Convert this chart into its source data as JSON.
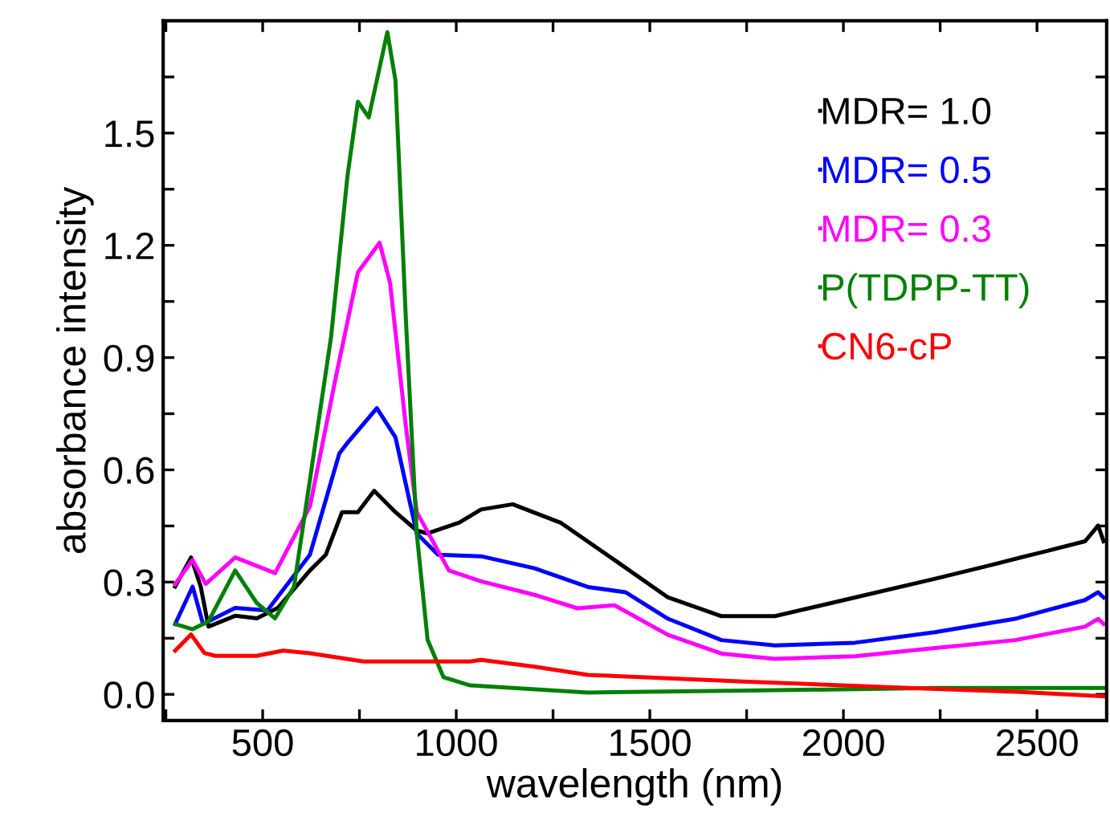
{
  "chart_data": {
    "type": "line",
    "xlabel": "wavelength (nm)",
    "ylabel": "absorbance intensity",
    "xlim": [
      243,
      2680
    ],
    "ylim": [
      -0.07,
      1.8
    ],
    "xticks": [
      {
        "value": 250,
        "label": null
      },
      500,
      {
        "value": 750,
        "label": null
      },
      1000,
      {
        "value": 1250,
        "label": null
      },
      1500,
      {
        "value": 1750,
        "label": null
      },
      2000,
      {
        "value": 2250,
        "label": null
      },
      2500
    ],
    "yticks": [
      "0.0",
      {
        "value": 0.15,
        "label": null
      },
      {
        "value": 0.3,
        "label": "0.3"
      },
      {
        "value": 0.45,
        "label": null
      },
      {
        "value": 0.6,
        "label": "0.6"
      },
      {
        "value": 0.75,
        "label": null
      },
      {
        "value": 0.9,
        "label": "0.9"
      },
      {
        "value": 1.05,
        "label": null
      },
      {
        "value": 1.2,
        "label": "1.2"
      },
      {
        "value": 1.35,
        "label": null
      },
      {
        "value": 1.5,
        "label": "1.5"
      },
      {
        "value": 1.65,
        "label": null
      }
    ],
    "grid": false,
    "legend": "top right",
    "marker": "none",
    "line_style": "solid",
    "series": [
      {
        "name": "MDR= 1.0",
        "color": "#000000",
        "x": [
          274,
          315,
          340,
          360,
          429,
          485,
          539,
          622,
          663,
          705,
          746,
          788,
          843,
          898,
          926,
          1008,
          1064,
          1146,
          1271,
          1409,
          1547,
          1685,
          1823,
          2030,
          2237,
          2375,
          2513,
          2624,
          2658,
          2672
        ],
        "values": [
          0.288,
          0.366,
          0.288,
          0.181,
          0.21,
          0.203,
          0.231,
          0.331,
          0.373,
          0.487,
          0.487,
          0.544,
          0.487,
          0.438,
          0.43,
          0.459,
          0.494,
          0.508,
          0.458,
          0.359,
          0.259,
          0.209,
          0.209,
          0.259,
          0.309,
          0.344,
          0.38,
          0.409,
          0.451,
          0.409
        ]
      },
      {
        "name": "MDR= 0.5",
        "color": "#0000ff",
        "x": [
          274,
          319,
          346,
          429,
          512,
          622,
          698,
          719,
          795,
          843,
          898,
          953,
          1064,
          1202,
          1340,
          1437,
          1547,
          1685,
          1823,
          2030,
          2237,
          2444,
          2624,
          2658,
          2672
        ],
        "values": [
          0.188,
          0.288,
          0.188,
          0.231,
          0.224,
          0.373,
          0.644,
          0.672,
          0.765,
          0.687,
          0.43,
          0.373,
          0.369,
          0.337,
          0.287,
          0.273,
          0.202,
          0.145,
          0.131,
          0.138,
          0.166,
          0.202,
          0.252,
          0.273,
          0.259
        ]
      },
      {
        "name": "MDR= 0.3",
        "color": "#ff00ff",
        "x": [
          274,
          319,
          353,
          429,
          532,
          622,
          691,
          746,
          802,
          829,
          870,
          898,
          981,
          1064,
          1202,
          1313,
          1409,
          1547,
          1685,
          1823,
          2030,
          2237,
          2444,
          2624,
          2658,
          2672
        ],
        "values": [
          0.295,
          0.359,
          0.295,
          0.366,
          0.324,
          0.502,
          0.858,
          1.128,
          1.207,
          1.1,
          0.715,
          0.487,
          0.331,
          0.302,
          0.266,
          0.23,
          0.238,
          0.159,
          0.109,
          0.095,
          0.102,
          0.124,
          0.145,
          0.181,
          0.202,
          0.188
        ]
      },
      {
        "name": "P(TDPP-TT)",
        "color": "#008000",
        "x": [
          274,
          319,
          360,
          429,
          484,
          532,
          581,
          622,
          677,
          719,
          746,
          774,
          801,
          822,
          843,
          870,
          898,
          926,
          967,
          1036,
          1146,
          1340,
          1754,
          2237,
          2672
        ],
        "values": [
          0.188,
          0.174,
          0.195,
          0.331,
          0.245,
          0.203,
          0.288,
          0.573,
          0.958,
          1.385,
          1.584,
          1.542,
          1.67,
          1.77,
          1.641,
          1.0,
          0.43,
          0.146,
          0.046,
          0.024,
          0.017,
          0.005,
          0.01,
          0.017,
          0.017
        ]
      },
      {
        "name": "CN6-cP",
        "color": "#ff0000",
        "x": [
          274,
          315,
          350,
          378,
          484,
          553,
          622,
          760,
          1036,
          1064,
          1202,
          1340,
          1754,
          2168,
          2444,
          2672
        ],
        "values": [
          0.117,
          0.16,
          0.11,
          0.103,
          0.103,
          0.117,
          0.11,
          0.088,
          0.088,
          0.092,
          0.074,
          0.052,
          0.034,
          0.017,
          0.007,
          -0.005
        ]
      }
    ]
  }
}
